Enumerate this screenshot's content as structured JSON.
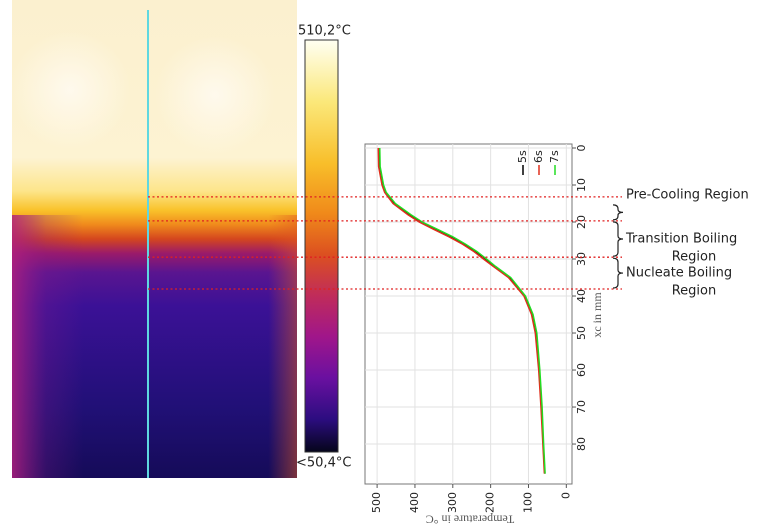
{
  "colorbar": {
    "max_label": "510,2°C",
    "min_label": "<50,4°C"
  },
  "chart_data": {
    "type": "line",
    "rotated": true,
    "x_label": "xc in mm",
    "y_label": "Temperature in °C",
    "x": [
      0,
      5,
      10,
      12,
      15,
      18,
      20,
      22,
      24,
      26,
      28,
      30,
      32,
      35,
      40,
      45,
      50,
      60,
      70,
      80,
      88
    ],
    "series": [
      {
        "name": "5s",
        "color": "#000000",
        "values": [
          495,
          494,
          485,
          478,
          455,
          415,
          385,
          345,
          305,
          270,
          240,
          215,
          190,
          150,
          110,
          90,
          80,
          72,
          66,
          61,
          57
        ]
      },
      {
        "name": "6s",
        "color": "#e0301e",
        "values": [
          497,
          496,
          487,
          480,
          458,
          419,
          389,
          350,
          310,
          274,
          244,
          219,
          193,
          153,
          112,
          92,
          82,
          73,
          67,
          62,
          58
        ]
      },
      {
        "name": "7s",
        "color": "#22dd22",
        "values": [
          493,
          492,
          483,
          476,
          452,
          411,
          381,
          340,
          300,
          266,
          236,
          211,
          187,
          147,
          108,
          88,
          78,
          70,
          64,
          60,
          56
        ]
      }
    ],
    "xlim": [
      0,
      90.8
    ],
    "xticks": [
      0,
      10,
      20,
      30,
      40,
      50,
      60,
      70,
      80
    ],
    "ylim": [
      -15,
      532
    ],
    "yticks": [
      0,
      100,
      200,
      300,
      400,
      500
    ],
    "grid": true,
    "region_boundaries": [
      13.2,
      19.7,
      29.5,
      38.1
    ],
    "regions": [
      {
        "lines": [
          "Pre-Cooling Region"
        ]
      },
      {
        "lines": [
          "Transition Boiling",
          "Region"
        ]
      },
      {
        "lines": [
          "Nucleate Boiling",
          "Region"
        ]
      }
    ]
  }
}
